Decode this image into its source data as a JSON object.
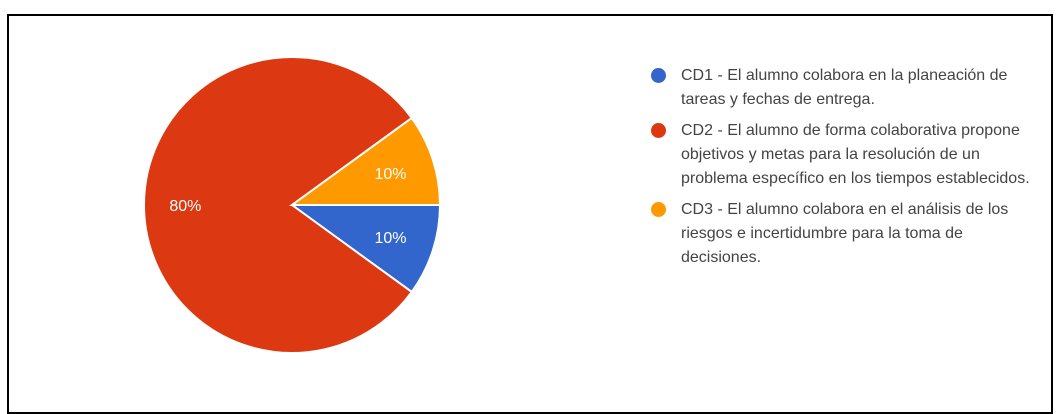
{
  "chart_data": {
    "type": "pie",
    "title": "",
    "slices": [
      {
        "label": "CD1 - El alumno colabora en la planeación de tareas y fechas de entrega.",
        "value": 10,
        "display": "10%",
        "color": "#3366cc"
      },
      {
        "label": "CD2 - El alumno de forma colaborativa propone objetivos y metas para la resolución de un problema específico en los tiempos establecidos.",
        "value": 80,
        "display": "80%",
        "color": "#dc3912"
      },
      {
        "label": "CD3 - El alumno colabora en el análisis de los riesgos e incertidumbre para la toma de decisiones.",
        "value": 10,
        "display": "10%",
        "color": "#ff9900"
      }
    ],
    "legend_position": "right",
    "label_color": "#ffffff"
  }
}
